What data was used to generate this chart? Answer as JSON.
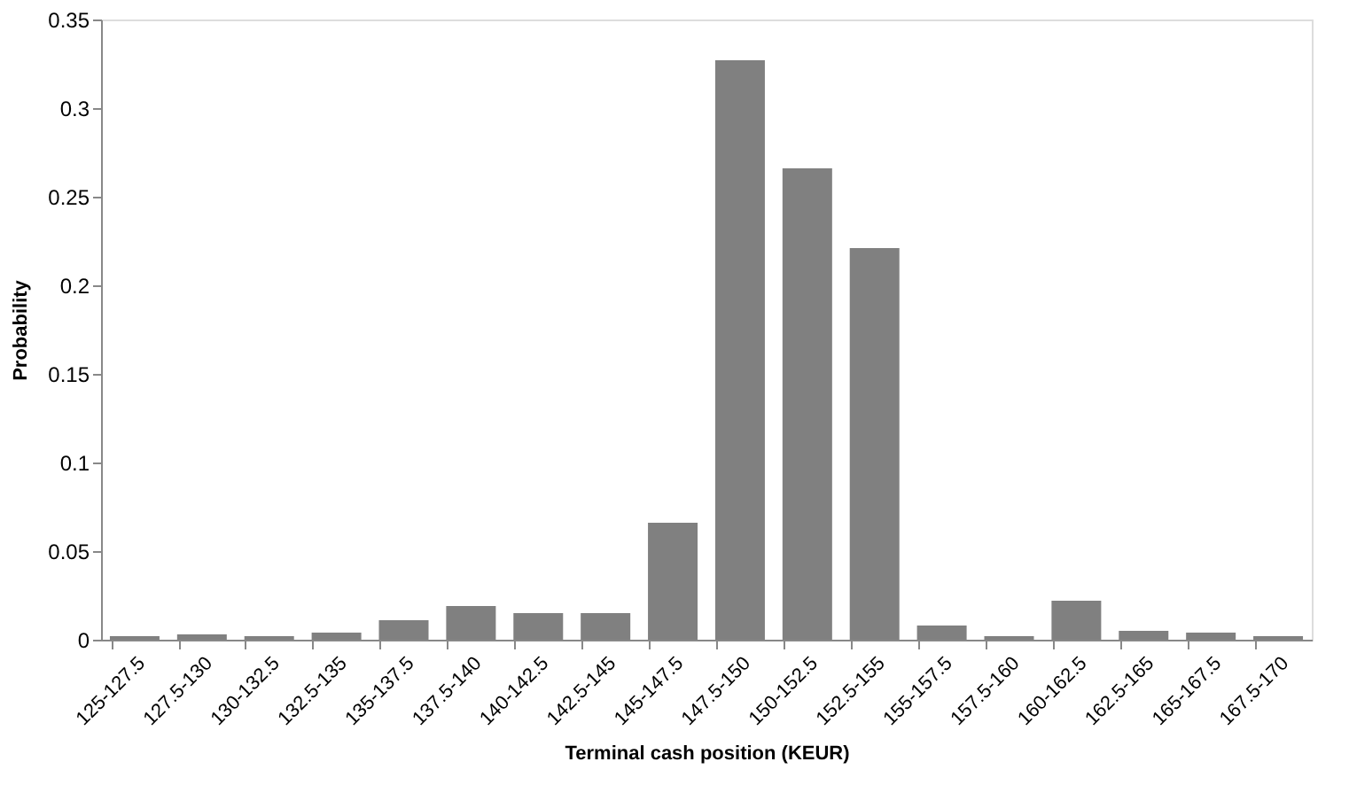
{
  "chart_data": {
    "type": "bar",
    "xlabel": "Terminal cash position (KEUR)",
    "ylabel": "Probability",
    "categories": [
      "125-127.5",
      "127.5-130",
      "130-132.5",
      "132.5-135",
      "135-137.5",
      "137.5-140",
      "140-142.5",
      "142.5-145",
      "145-147.5",
      "147.5-150",
      "150-152.5",
      "152.5-155",
      "155-157.5",
      "157.5-160",
      "160-162.5",
      "162.5-165",
      "165-167.5",
      "167.5-170"
    ],
    "values": [
      0.002,
      0.003,
      0.002,
      0.004,
      0.011,
      0.019,
      0.015,
      0.015,
      0.066,
      0.327,
      0.266,
      0.221,
      0.008,
      0.002,
      0.022,
      0.005,
      0.004,
      0.002
    ],
    "color": "#808080",
    "ylim": [
      0,
      0.35
    ],
    "yticks": [
      0,
      0.05,
      0.1,
      0.15,
      0.2,
      0.25,
      0.3,
      0.35
    ],
    "grid": false
  }
}
